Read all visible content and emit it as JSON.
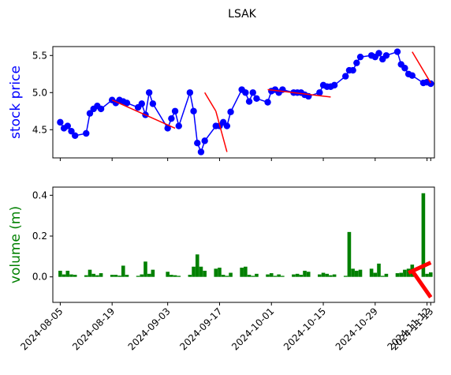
{
  "colors": {
    "price_line": "#0000ff",
    "trend_line": "#ff0000",
    "volume_bar": "#008000",
    "axes": "#000000",
    "background": "#ffffff"
  },
  "chart_data": [
    {
      "type": "line",
      "title": "LSAK",
      "ylabel": "stock price",
      "ylabel_color": "#0000ff",
      "ylim": [
        4.12,
        5.62
      ],
      "yticks": [
        4.5,
        5.0,
        5.5
      ],
      "ytick_labels": [
        "4.5",
        "5.0",
        "5.5"
      ],
      "xlim": [
        "2024-08-03",
        "2024-11-14"
      ],
      "grid": false,
      "series": [
        {
          "marker": "circle",
          "x": [
            "2024-08-05",
            "2024-08-06",
            "2024-08-07",
            "2024-08-08",
            "2024-08-09",
            "2024-08-12",
            "2024-08-13",
            "2024-08-14",
            "2024-08-15",
            "2024-08-16",
            "2024-08-19",
            "2024-08-20",
            "2024-08-21",
            "2024-08-22",
            "2024-08-23",
            "2024-08-26",
            "2024-08-27",
            "2024-08-28",
            "2024-08-29",
            "2024-08-30",
            "2024-09-03",
            "2024-09-04",
            "2024-09-05",
            "2024-09-06",
            "2024-09-09",
            "2024-09-10",
            "2024-09-11",
            "2024-09-12",
            "2024-09-13",
            "2024-09-16",
            "2024-09-17",
            "2024-09-18",
            "2024-09-19",
            "2024-09-20",
            "2024-09-23",
            "2024-09-24",
            "2024-09-25",
            "2024-09-26",
            "2024-09-27",
            "2024-09-30",
            "2024-10-01",
            "2024-10-02",
            "2024-10-03",
            "2024-10-04",
            "2024-10-07",
            "2024-10-08",
            "2024-10-09",
            "2024-10-10",
            "2024-10-11",
            "2024-10-14",
            "2024-10-15",
            "2024-10-16",
            "2024-10-17",
            "2024-10-18",
            "2024-10-21",
            "2024-10-22",
            "2024-10-23",
            "2024-10-24",
            "2024-10-25",
            "2024-10-28",
            "2024-10-29",
            "2024-10-30",
            "2024-10-31",
            "2024-11-01",
            "2024-11-04",
            "2024-11-05",
            "2024-11-06",
            "2024-11-07",
            "2024-11-08",
            "2024-11-11",
            "2024-11-12",
            "2024-11-13"
          ],
          "y": [
            4.6,
            4.52,
            4.55,
            4.48,
            4.42,
            4.45,
            4.72,
            4.78,
            4.82,
            4.78,
            4.9,
            4.86,
            4.9,
            4.88,
            4.86,
            4.8,
            4.85,
            4.7,
            5.0,
            4.85,
            4.52,
            4.65,
            4.75,
            4.55,
            5.0,
            4.75,
            4.32,
            4.2,
            4.35,
            4.55,
            4.55,
            4.6,
            4.55,
            4.74,
            5.04,
            5.0,
            4.88,
            5.0,
            4.92,
            4.87,
            5.02,
            5.04,
            5.0,
            5.04,
            5.0,
            5.0,
            5.0,
            4.97,
            4.95,
            5.0,
            5.1,
            5.08,
            5.08,
            5.1,
            5.22,
            5.3,
            5.3,
            5.4,
            5.48,
            5.5,
            5.48,
            5.53,
            5.45,
            5.5,
            5.55,
            5.38,
            5.33,
            5.25,
            5.23,
            5.13,
            5.14,
            5.12
          ]
        }
      ],
      "trend_lines": [
        {
          "x": [
            "2024-08-19",
            "2024-09-05"
          ],
          "y": [
            4.9,
            4.52
          ]
        },
        {
          "x": [
            "2024-09-13",
            "2024-09-16"
          ],
          "y": [
            5.0,
            4.75
          ]
        },
        {
          "x": [
            "2024-09-16",
            "2024-09-19"
          ],
          "y": [
            4.75,
            4.2
          ]
        },
        {
          "x": [
            "2024-09-30",
            "2024-10-17"
          ],
          "y": [
            5.04,
            4.94
          ]
        },
        {
          "x": [
            "2024-11-08",
            "2024-11-13"
          ],
          "y": [
            5.55,
            5.13
          ]
        }
      ]
    },
    {
      "type": "bar",
      "ylabel": "volume (m)",
      "ylabel_color": "#008000",
      "ylim": [
        -0.125,
        0.44
      ],
      "yticks": [
        0.0,
        0.2,
        0.4
      ],
      "ytick_labels": [
        "0.0",
        "0.2",
        "0.4"
      ],
      "xlim": [
        "2024-08-03",
        "2024-11-14"
      ],
      "grid": false,
      "xticks": [
        "2024-08-05",
        "2024-08-19",
        "2024-09-03",
        "2024-09-17",
        "2024-10-01",
        "2024-10-15",
        "2024-10-29",
        "2024-11-12",
        "2024-11-13"
      ],
      "xtick_labels": [
        "2024-08-05",
        "2024-08-19",
        "2024-09-03",
        "2024-09-17",
        "2024-10-01",
        "2024-10-15",
        "2024-10-29",
        "2024-11-12",
        "2024-11-13"
      ],
      "x": [
        "2024-08-05",
        "2024-08-06",
        "2024-08-07",
        "2024-08-08",
        "2024-08-09",
        "2024-08-12",
        "2024-08-13",
        "2024-08-14",
        "2024-08-15",
        "2024-08-16",
        "2024-08-19",
        "2024-08-20",
        "2024-08-21",
        "2024-08-22",
        "2024-08-23",
        "2024-08-26",
        "2024-08-27",
        "2024-08-28",
        "2024-08-29",
        "2024-08-30",
        "2024-09-03",
        "2024-09-04",
        "2024-09-05",
        "2024-09-06",
        "2024-09-09",
        "2024-09-10",
        "2024-09-11",
        "2024-09-12",
        "2024-09-13",
        "2024-09-16",
        "2024-09-17",
        "2024-09-18",
        "2024-09-19",
        "2024-09-20",
        "2024-09-23",
        "2024-09-24",
        "2024-09-25",
        "2024-09-26",
        "2024-09-27",
        "2024-09-30",
        "2024-10-01",
        "2024-10-02",
        "2024-10-03",
        "2024-10-04",
        "2024-10-07",
        "2024-10-08",
        "2024-10-09",
        "2024-10-10",
        "2024-10-11",
        "2024-10-14",
        "2024-10-15",
        "2024-10-16",
        "2024-10-17",
        "2024-10-18",
        "2024-10-21",
        "2024-10-22",
        "2024-10-23",
        "2024-10-24",
        "2024-10-25",
        "2024-10-28",
        "2024-10-29",
        "2024-10-30",
        "2024-10-31",
        "2024-11-01",
        "2024-11-04",
        "2024-11-05",
        "2024-11-06",
        "2024-11-07",
        "2024-11-08",
        "2024-11-11",
        "2024-11-12",
        "2024-11-13"
      ],
      "values": [
        0.03,
        0.012,
        0.03,
        0.012,
        0.01,
        0.008,
        0.035,
        0.015,
        0.008,
        0.018,
        0.01,
        0.01,
        0.006,
        0.055,
        0.01,
        0.005,
        0.012,
        0.075,
        0.015,
        0.035,
        0.025,
        0.01,
        0.008,
        0.005,
        0.01,
        0.05,
        0.11,
        0.05,
        0.03,
        0.04,
        0.045,
        0.01,
        0.005,
        0.02,
        0.045,
        0.05,
        0.01,
        0.005,
        0.015,
        0.012,
        0.018,
        0.005,
        0.012,
        0.005,
        0.012,
        0.015,
        0.01,
        0.03,
        0.025,
        0.012,
        0.02,
        0.015,
        0.008,
        0.012,
        0.005,
        0.22,
        0.04,
        0.03,
        0.035,
        0.04,
        0.02,
        0.065,
        0.005,
        0.015,
        0.018,
        0.02,
        0.035,
        0.04,
        0.06,
        0.41,
        0.015,
        0.022
      ],
      "trend_lines": [
        {
          "x": [
            "2024-11-07",
            "2024-11-13"
          ],
          "y": [
            0.02,
            0.07
          ]
        },
        {
          "x": [
            "2024-11-08",
            "2024-11-13"
          ],
          "y": [
            0.03,
            -0.1
          ]
        }
      ]
    }
  ]
}
